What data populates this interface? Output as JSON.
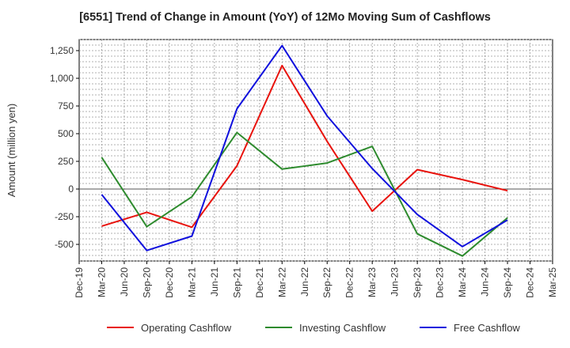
{
  "chart_data": {
    "type": "line",
    "title": "[6551]  Trend of Change in Amount (YoY) of 12Mo Moving Sum of Cashflows",
    "xlabel": "",
    "ylabel": "Amount (million yen)",
    "ylim": [
      -650,
      1350
    ],
    "yticks": [
      -500,
      -250,
      0,
      250,
      500,
      750,
      1000,
      1250
    ],
    "ytick_labels": [
      "-500",
      "-250",
      "0",
      "250",
      "500",
      "750",
      "1,000",
      "1,250"
    ],
    "categories": [
      "Dec-19",
      "Mar-20",
      "Jun-20",
      "Sep-20",
      "Dec-20",
      "Mar-21",
      "Jun-21",
      "Sep-21",
      "Dec-21",
      "Mar-22",
      "Jun-22",
      "Sep-22",
      "Dec-22",
      "Mar-23",
      "Jun-23",
      "Sep-23",
      "Dec-23",
      "Mar-24",
      "Jun-24",
      "Sep-24",
      "Dec-24",
      "Mar-25"
    ],
    "grid": true,
    "legend_position": "bottom",
    "series": [
      {
        "name": "Operating Cashflow",
        "color": "#e8120c",
        "values": [
          null,
          -335,
          null,
          -210,
          null,
          -345,
          null,
          210,
          null,
          1115,
          null,
          430,
          null,
          -200,
          null,
          175,
          null,
          85,
          null,
          -15,
          null,
          null
        ]
      },
      {
        "name": "Investing Cashflow",
        "color": "#2e8b2e",
        "values": [
          null,
          285,
          null,
          -340,
          null,
          -70,
          null,
          510,
          null,
          180,
          null,
          235,
          null,
          385,
          null,
          -405,
          null,
          -605,
          null,
          -260,
          null,
          null
        ]
      },
      {
        "name": "Free Cashflow",
        "color": "#1010dd",
        "values": [
          null,
          -50,
          null,
          -555,
          null,
          -425,
          null,
          725,
          null,
          1295,
          null,
          660,
          null,
          185,
          null,
          -230,
          null,
          -520,
          null,
          -280,
          null,
          null
        ]
      }
    ]
  }
}
